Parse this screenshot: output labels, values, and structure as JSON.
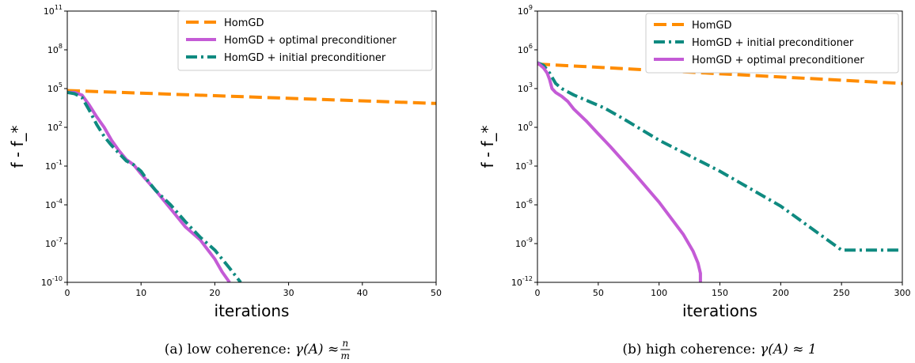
{
  "chart_data": [
    {
      "type": "line",
      "xlabel": "iterations",
      "ylabel": "f - f_*",
      "y_scale": "log",
      "xlim": [
        0,
        50
      ],
      "ylim_exp": [
        -10,
        11
      ],
      "x_ticks": [
        0,
        10,
        20,
        30,
        40,
        50
      ],
      "y_tick_exps": [
        -10,
        -7,
        -4,
        -1,
        2,
        5,
        8,
        11
      ],
      "legend_position": "top-right",
      "caption": {
        "prefix": "(a) low coherence: ",
        "math": "γ(A) ≈ ",
        "frac_num": "n",
        "frac_den": "m"
      },
      "series": [
        {
          "name": "HomGD",
          "color": "#ff8c00",
          "dash": "dashed",
          "x": [
            0,
            50
          ],
          "log10_y": [
            4.85,
            3.85
          ]
        },
        {
          "name": "HomGD + optimal preconditioner",
          "color": "#c45bd6",
          "dash": "solid",
          "x": [
            0,
            1,
            2,
            3,
            4,
            5,
            6,
            7,
            8,
            9,
            10,
            12,
            14,
            16,
            18,
            20,
            21,
            22
          ],
          "log10_y": [
            4.7,
            4.7,
            4.5,
            3.7,
            2.8,
            2.0,
            1.0,
            0.2,
            -0.5,
            -0.9,
            -1.6,
            -2.9,
            -4.3,
            -5.7,
            -6.7,
            -8.2,
            -9.2,
            -10
          ]
        },
        {
          "name": "HomGD + initial preconditioner",
          "color": "#0f8a80",
          "dash": "dashdot",
          "x": [
            0,
            1,
            2,
            3,
            4,
            5,
            6,
            7,
            8,
            9,
            10,
            11,
            12,
            14,
            16,
            18,
            20,
            22,
            23.5
          ],
          "log10_y": [
            4.7,
            4.6,
            4.3,
            3.3,
            2.2,
            1.3,
            0.6,
            0.0,
            -0.6,
            -0.9,
            -1.4,
            -2.2,
            -2.9,
            -4.0,
            -5.3,
            -6.5,
            -7.5,
            -8.9,
            -10
          ]
        }
      ]
    },
    {
      "type": "line",
      "xlabel": "iterations",
      "ylabel": "f - f_*",
      "y_scale": "log",
      "xlim": [
        0,
        300
      ],
      "ylim_exp": [
        -12,
        9
      ],
      "x_ticks": [
        0,
        50,
        100,
        150,
        200,
        250,
        300
      ],
      "y_tick_exps": [
        -12,
        -9,
        -6,
        -3,
        0,
        3,
        6,
        9
      ],
      "legend_position": "top-right",
      "caption": {
        "prefix": "(b) high coherence: ",
        "math": "γ(A) ≈ 1",
        "frac_num": "",
        "frac_den": ""
      },
      "series": [
        {
          "name": "HomGD",
          "color": "#ff8c00",
          "dash": "dashed",
          "x": [
            0,
            300
          ],
          "log10_y": [
            4.9,
            3.4
          ]
        },
        {
          "name": "HomGD + initial preconditioner",
          "color": "#0f8a80",
          "dash": "dashdot",
          "x": [
            0,
            5,
            10,
            15,
            20,
            30,
            40,
            55,
            70,
            100,
            150,
            200,
            250,
            255,
            300
          ],
          "log10_y": [
            5.0,
            4.8,
            4.2,
            3.4,
            3.0,
            2.5,
            2.1,
            1.5,
            0.7,
            -1.0,
            -3.4,
            -6.1,
            -9.5,
            -9.5,
            -9.5
          ]
        },
        {
          "name": "HomGD + optimal preconditioner",
          "color": "#c45bd6",
          "dash": "solid",
          "x": [
            0,
            5,
            8,
            10,
            12,
            15,
            20,
            25,
            30,
            40,
            50,
            60,
            80,
            100,
            120,
            128,
            132,
            134,
            134
          ],
          "log10_y": [
            5.0,
            4.6,
            4.2,
            3.7,
            3.0,
            2.7,
            2.4,
            2.0,
            1.4,
            0.5,
            -0.5,
            -1.5,
            -3.6,
            -5.8,
            -8.3,
            -9.6,
            -10.5,
            -11.3,
            -12
          ]
        }
      ]
    }
  ]
}
